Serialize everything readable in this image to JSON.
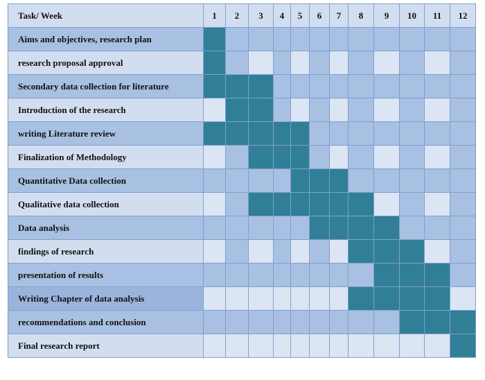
{
  "table": {
    "header_task": "Task/ Week",
    "weeks": [
      "1",
      "2",
      "3",
      "4",
      "5",
      "6",
      "7",
      "8",
      "9",
      "10",
      "11",
      "12"
    ],
    "colors": {
      "active": "#307f97",
      "inactive": "#a8c0e2",
      "pale": "#dbe5f3"
    },
    "rows": [
      {
        "task": "Aims and objectives, research plan",
        "cells": [
          "active",
          "inactive",
          "inactive",
          "inactive",
          "inactive",
          "inactive",
          "inactive",
          "inactive",
          "inactive",
          "inactive",
          "inactive",
          "inactive"
        ]
      },
      {
        "task": "research proposal approval",
        "cells": [
          "active",
          "inactive",
          "pale",
          "inactive",
          "pale",
          "inactive",
          "pale",
          "inactive",
          "pale",
          "inactive",
          "pale",
          "inactive"
        ]
      },
      {
        "task": "Secondary data collection for literature",
        "cells": [
          "active",
          "active",
          "active",
          "inactive",
          "inactive",
          "inactive",
          "inactive",
          "inactive",
          "inactive",
          "inactive",
          "inactive",
          "inactive"
        ]
      },
      {
        "task": "Introduction of the research",
        "cells": [
          "pale",
          "active",
          "active",
          "inactive",
          "pale",
          "inactive",
          "pale",
          "inactive",
          "pale",
          "inactive",
          "pale",
          "inactive"
        ]
      },
      {
        "task": "writing Literature review",
        "cells": [
          "active",
          "active",
          "active",
          "active",
          "active",
          "inactive",
          "inactive",
          "inactive",
          "inactive",
          "inactive",
          "inactive",
          "inactive"
        ]
      },
      {
        "task": "Finalization of Methodology",
        "cells": [
          "pale",
          "inactive",
          "active",
          "active",
          "active",
          "inactive",
          "pale",
          "inactive",
          "pale",
          "inactive",
          "pale",
          "inactive"
        ]
      },
      {
        "task": "Quantitative Data collection",
        "cells": [
          "inactive",
          "inactive",
          "inactive",
          "inactive",
          "active",
          "active",
          "active",
          "inactive",
          "inactive",
          "inactive",
          "inactive",
          "inactive"
        ]
      },
      {
        "task": "Qualitative data collection",
        "cells": [
          "pale",
          "inactive",
          "active",
          "active",
          "active",
          "active",
          "active",
          "active",
          "pale",
          "inactive",
          "pale",
          "inactive"
        ]
      },
      {
        "task": "Data analysis",
        "cells": [
          "inactive",
          "inactive",
          "inactive",
          "inactive",
          "inactive",
          "active",
          "active",
          "active",
          "active",
          "inactive",
          "inactive",
          "inactive"
        ]
      },
      {
        "task": "findings of research",
        "cells": [
          "pale",
          "inactive",
          "pale",
          "inactive",
          "pale",
          "inactive",
          "pale",
          "active",
          "active",
          "active",
          "pale",
          "inactive"
        ]
      },
      {
        "task": "presentation of results",
        "cells": [
          "inactive",
          "inactive",
          "inactive",
          "inactive",
          "inactive",
          "inactive",
          "inactive",
          "inactive",
          "active",
          "active",
          "active",
          "inactive"
        ]
      },
      {
        "task": "Writing Chapter of data analysis",
        "cells": [
          "pale",
          "pale",
          "pale",
          "pale",
          "pale",
          "pale",
          "pale",
          "active",
          "active",
          "active",
          "active",
          "pale"
        ]
      },
      {
        "task": "recommendations and conclusion",
        "cells": [
          "inactive",
          "inactive",
          "inactive",
          "inactive",
          "inactive",
          "inactive",
          "inactive",
          "inactive",
          "inactive",
          "active",
          "active",
          "active"
        ]
      },
      {
        "task": "Final research report",
        "cells": [
          "pale",
          "pale",
          "pale",
          "pale",
          "pale",
          "pale",
          "pale",
          "pale",
          "pale",
          "pale",
          "pale",
          "active"
        ]
      }
    ]
  }
}
